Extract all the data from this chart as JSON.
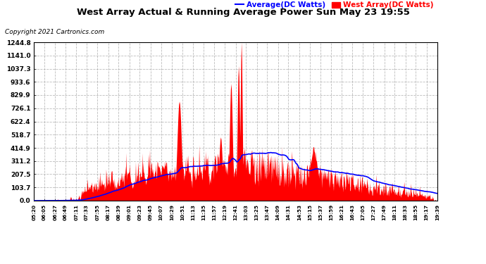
{
  "title": "West Array Actual & Running Average Power Sun May 23 19:55",
  "copyright": "Copyright 2021 Cartronics.com",
  "legend_avg": "Average(DC Watts)",
  "legend_west": "West Array(DC Watts)",
  "ymax": 1244.8,
  "ymin": 0.0,
  "yticks": [
    0.0,
    103.7,
    207.5,
    311.2,
    414.9,
    518.7,
    622.4,
    726.1,
    829.9,
    933.6,
    1037.3,
    1141.0,
    1244.8
  ],
  "bg_color": "#ffffff",
  "grid_color": "#aaaaaa",
  "red_color": "#ff0000",
  "blue_color": "#0000ff",
  "title_color": "#000000",
  "copyright_color": "#000000",
  "avg_label_color": "#0000ff",
  "west_label_color": "#ff0000",
  "x_labels": [
    "05:20",
    "06:05",
    "06:27",
    "06:49",
    "07:11",
    "07:33",
    "07:55",
    "08:17",
    "08:39",
    "09:01",
    "09:23",
    "09:45",
    "10:07",
    "10:29",
    "10:51",
    "11:13",
    "11:35",
    "11:57",
    "12:19",
    "12:41",
    "13:03",
    "13:25",
    "13:47",
    "14:09",
    "14:31",
    "14:53",
    "15:15",
    "15:37",
    "15:59",
    "16:21",
    "16:43",
    "17:05",
    "17:27",
    "17:49",
    "18:11",
    "18:33",
    "18:55",
    "19:17",
    "19:39"
  ]
}
